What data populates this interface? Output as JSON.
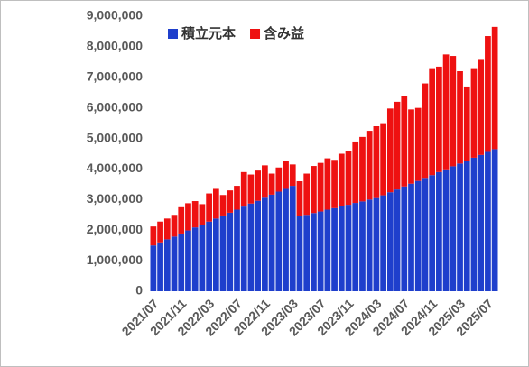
{
  "chart_data": {
    "type": "stacked_bar",
    "categories": [
      "2021/07",
      null,
      null,
      null,
      "2021/11",
      null,
      null,
      null,
      "2022/03",
      null,
      null,
      null,
      "2022/07",
      null,
      null,
      null,
      "2022/11",
      null,
      null,
      null,
      "2023/03",
      null,
      null,
      null,
      "2023/07",
      null,
      null,
      null,
      "2023/11",
      null,
      null,
      null,
      "2024/03",
      null,
      null,
      null,
      "2024/07",
      null,
      null,
      null,
      "2024/11",
      null,
      null,
      null,
      "2025/03",
      null,
      null,
      null,
      "2025/07",
      null
    ],
    "series": [
      {
        "name": "積立元本",
        "color": "#1f3fcc",
        "values": [
          1500000,
          1600000,
          1700000,
          1790000,
          1890000,
          1990000,
          2090000,
          2180000,
          2280000,
          2380000,
          2480000,
          2570000,
          2670000,
          2770000,
          2870000,
          2960000,
          3060000,
          3160000,
          3260000,
          3350000,
          3450000,
          2450000,
          2500000,
          2560000,
          2610000,
          2670000,
          2720000,
          2780000,
          2830000,
          2890000,
          2940000,
          3000000,
          3050000,
          3140000,
          3240000,
          3330000,
          3430000,
          3520000,
          3610000,
          3710000,
          3800000,
          3900000,
          3990000,
          4090000,
          4180000,
          4270000,
          4370000,
          4460000,
          4560000,
          4650000
        ]
      },
      {
        "name": "含み益",
        "color": "#ee1111",
        "values": [
          620000,
          680000,
          680000,
          710000,
          860000,
          890000,
          860000,
          670000,
          920000,
          970000,
          670000,
          730000,
          780000,
          1130000,
          950000,
          990000,
          1060000,
          690000,
          790000,
          900000,
          700000,
          1150000,
          1350000,
          1540000,
          1590000,
          1680000,
          1580000,
          1720000,
          1770000,
          2010000,
          2110000,
          2250000,
          2350000,
          2360000,
          2740000,
          2870000,
          2970000,
          2430000,
          2390000,
          3090000,
          3500000,
          3450000,
          3760000,
          3610000,
          3020000,
          2430000,
          2930000,
          3140000,
          3790000,
          4000000
        ]
      }
    ],
    "ylim": [
      0,
      9000000
    ],
    "yticks": [
      0,
      {
        "value": 1000000,
        "label": "1,000,000"
      },
      {
        "value": 2000000,
        "label": "2,000,000"
      },
      {
        "value": 3000000,
        "label": "3,000,000"
      },
      {
        "value": 4000000,
        "label": "4,000,000"
      },
      {
        "value": 5000000,
        "label": "5,000,000"
      },
      {
        "value": 6000000,
        "label": "6,000,000"
      },
      {
        "value": 7000000,
        "label": "7,000,000"
      },
      {
        "value": 8000000,
        "label": "8,000,000"
      },
      {
        "value": 9000000,
        "label": "9,000,000"
      }
    ],
    "legend": "upper left",
    "grid": false
  }
}
